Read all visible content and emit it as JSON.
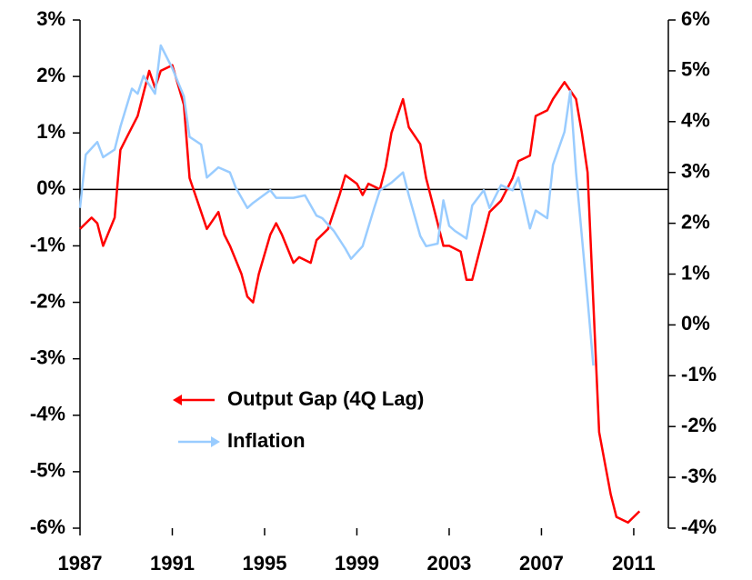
{
  "chart_data": {
    "type": "line",
    "xlim": [
      1987,
      2012.5
    ],
    "xticks": [
      1987,
      1991,
      1995,
      1999,
      2003,
      2007,
      2011
    ],
    "ylim": [
      -6,
      3
    ],
    "yticks": [
      {
        "value": 3,
        "label": "3%"
      },
      {
        "value": 2,
        "label": "2%"
      },
      {
        "value": 1,
        "label": "1%"
      },
      {
        "value": 0,
        "label": "0%"
      },
      {
        "value": -1,
        "label": "-1%"
      },
      {
        "value": -2,
        "label": "-2%"
      },
      {
        "value": -3,
        "label": "-3%"
      },
      {
        "value": -4,
        "label": "-4%"
      },
      {
        "value": -5,
        "label": "-5%"
      },
      {
        "value": -6,
        "label": "-6%"
      }
    ],
    "y2lim": [
      -4,
      6
    ],
    "y2ticks": [
      {
        "value": 6,
        "label": "6%"
      },
      {
        "value": 5,
        "label": "5%"
      },
      {
        "value": 4,
        "label": "4%"
      },
      {
        "value": 3,
        "label": "3%"
      },
      {
        "value": 2,
        "label": "2%"
      },
      {
        "value": 1,
        "label": "1%"
      },
      {
        "value": 0,
        "label": "0%"
      },
      {
        "value": -1,
        "label": "-1%"
      },
      {
        "value": -2,
        "label": "-2%"
      },
      {
        "value": -3,
        "label": "-3%"
      },
      {
        "value": -4,
        "label": "-4%"
      }
    ],
    "legend": "lower center",
    "series": [
      {
        "name": "Output Gap (4Q Lag)",
        "color": "#ff0000",
        "axis": "y",
        "x": [
          1987.0,
          1987.5,
          1987.75,
          1988.0,
          1988.5,
          1988.75,
          1989.0,
          1989.5,
          1990.0,
          1990.25,
          1990.5,
          1991.0,
          1991.5,
          1991.75,
          1992.25,
          1992.5,
          1993.0,
          1993.25,
          1993.5,
          1994.0,
          1994.25,
          1994.5,
          1994.75,
          1995.25,
          1995.5,
          1995.75,
          1996.25,
          1996.5,
          1997.0,
          1997.25,
          1997.75,
          1998.25,
          1998.5,
          1999.0,
          1999.25,
          1999.5,
          2000.0,
          2000.25,
          2000.5,
          2001.0,
          2001.25,
          2001.75,
          2002.0,
          2002.5,
          2002.75,
          2003.0,
          2003.5,
          2003.75,
          2004.0,
          2004.5,
          2004.75,
          2005.25,
          2005.75,
          2006.0,
          2006.5,
          2006.75,
          2007.25,
          2007.5,
          2008.0,
          2008.5,
          2008.75,
          2009.0,
          2009.25,
          2009.5,
          2010.0,
          2010.25,
          2010.75,
          2011.0,
          2011.25
        ],
        "values": [
          -0.7,
          -0.5,
          -0.6,
          -1.0,
          -0.5,
          0.7,
          0.9,
          1.3,
          2.1,
          1.8,
          2.1,
          2.2,
          1.5,
          0.2,
          -0.4,
          -0.7,
          -0.4,
          -0.8,
          -1.0,
          -1.5,
          -1.9,
          -2.0,
          -1.5,
          -0.8,
          -0.6,
          -0.8,
          -1.3,
          -1.2,
          -1.3,
          -0.9,
          -0.7,
          -0.1,
          0.25,
          0.1,
          -0.1,
          0.1,
          0.0,
          0.4,
          1.0,
          1.6,
          1.1,
          0.8,
          0.2,
          -0.6,
          -1.0,
          -1.0,
          -1.1,
          -1.6,
          -1.6,
          -0.8,
          -0.4,
          -0.2,
          0.2,
          0.5,
          0.6,
          1.3,
          1.4,
          1.6,
          1.9,
          1.6,
          1.0,
          0.3,
          -2.0,
          -4.3,
          -5.4,
          -5.8,
          -5.9,
          -5.8,
          -5.7
        ]
      },
      {
        "name": "Inflation",
        "color": "#99ccff",
        "axis": "y2",
        "x": [
          1987.0,
          1987.25,
          1987.75,
          1988.0,
          1988.5,
          1988.75,
          1989.25,
          1989.5,
          1989.75,
          1990.25,
          1990.5,
          1991.0,
          1991.5,
          1991.75,
          1992.25,
          1992.5,
          1993.0,
          1993.5,
          1993.75,
          1994.25,
          1994.5,
          1995.25,
          1995.5,
          1996.25,
          1996.75,
          1997.25,
          1997.5,
          1998.0,
          1998.5,
          1998.75,
          1999.25,
          1999.75,
          2000.0,
          2000.5,
          2001.0,
          2001.25,
          2001.75,
          2002.0,
          2002.5,
          2002.75,
          2003.0,
          2003.25,
          2003.75,
          2004.0,
          2004.5,
          2004.75,
          2005.25,
          2005.75,
          2006.0,
          2006.5,
          2006.75,
          2007.25,
          2007.5,
          2008.0,
          2008.25,
          2008.5,
          2009.0,
          2009.25
        ],
        "values": [
          2.3,
          3.35,
          3.6,
          3.3,
          3.45,
          3.9,
          4.65,
          4.55,
          4.9,
          4.55,
          5.5,
          5.05,
          4.5,
          3.7,
          3.55,
          2.9,
          3.1,
          3.0,
          2.7,
          2.3,
          2.4,
          2.65,
          2.5,
          2.5,
          2.55,
          2.15,
          2.1,
          1.85,
          1.5,
          1.3,
          1.55,
          2.3,
          2.65,
          2.8,
          3.0,
          2.55,
          1.75,
          1.55,
          1.6,
          2.45,
          1.95,
          1.85,
          1.7,
          2.35,
          2.65,
          2.3,
          2.75,
          2.65,
          2.9,
          1.9,
          2.25,
          2.1,
          3.15,
          3.8,
          4.6,
          3.0,
          0.5,
          -0.8
        ]
      }
    ]
  }
}
